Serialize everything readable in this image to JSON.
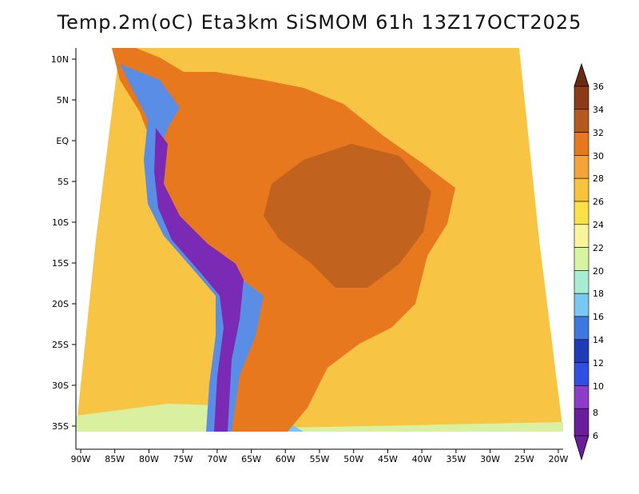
{
  "title": "Temp.2m(oC) Eta3km SiSMOM 61h 13Z17OCT2025",
  "lat_labels": [
    "10N",
    "5N",
    "EQ",
    "5S",
    "10S",
    "15S",
    "20S",
    "25S",
    "30S",
    "35S"
  ],
  "lon_labels": [
    "90W",
    "85W",
    "80W",
    "75W",
    "70W",
    "65W",
    "60W",
    "55W",
    "50W",
    "45W",
    "40W",
    "35W",
    "30W",
    "25W",
    "20W"
  ],
  "colorbar": {
    "labels": [
      "36",
      "34",
      "32",
      "30",
      "28",
      "26",
      "24",
      "22",
      "20",
      "18",
      "16",
      "14",
      "12",
      "10",
      "8",
      "6"
    ],
    "colors": [
      "#6b2a12",
      "#8c3a17",
      "#b55a1e",
      "#e8781e",
      "#f4a23a",
      "#f7c23e",
      "#fbe04a",
      "#f8f49a",
      "#d8f4a0",
      "#a8ecd4",
      "#78c8f4",
      "#3c78e0",
      "#1e3cb8",
      "#3050e4",
      "#8c3cc8",
      "#6a1e9c"
    ]
  },
  "regions": {
    "ocean": "#f8c444",
    "land": "#e8781e",
    "hot": "#c2621f",
    "andes_low": "#5a8ee6",
    "andes_high": "#7a2ab4",
    "cool_south": "#d8f0a0"
  }
}
